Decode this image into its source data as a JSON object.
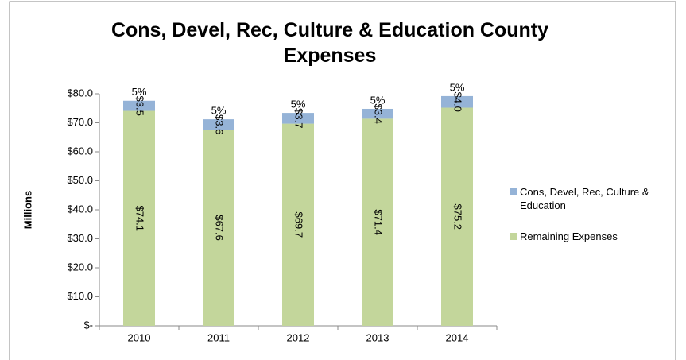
{
  "chart_data": {
    "type": "stacked_bar",
    "title": "Cons, Devel, Rec, Culture & Education County Expenses",
    "ylabel": "Millions",
    "categories": [
      "2010",
      "2011",
      "2012",
      "2013",
      "2014"
    ],
    "series": [
      {
        "name": "Cons, Devel, Rec, Culture & Education",
        "color": "#95b3d7",
        "values": [
          3.5,
          3.6,
          3.7,
          3.4,
          4.0
        ],
        "value_labels": [
          "$3.5",
          "$3.6",
          "$3.7",
          "$3.4",
          "$4.0"
        ]
      },
      {
        "name": "Remaining Expenses",
        "color": "#c3d69b",
        "values": [
          74.1,
          67.6,
          69.7,
          71.4,
          75.2
        ],
        "value_labels": [
          "$74.1",
          "$67.6",
          "$69.7",
          "$71.4",
          "$75.2"
        ]
      }
    ],
    "top_labels": [
      "5%",
      "5%",
      "5%",
      "5%",
      "5%"
    ],
    "ylim": [
      0,
      80
    ],
    "yticks": [
      {
        "value": 0,
        "label": "$-"
      },
      {
        "value": 10,
        "label": "$10.0"
      },
      {
        "value": 20,
        "label": "$20.0"
      },
      {
        "value": 30,
        "label": "$30.0"
      },
      {
        "value": 40,
        "label": "$40.0"
      },
      {
        "value": 50,
        "label": "$50.0"
      },
      {
        "value": 60,
        "label": "$60.0"
      },
      {
        "value": 70,
        "label": "$70.0"
      },
      {
        "value": 80,
        "label": "$80.0"
      }
    ],
    "grid": false,
    "legend": "right"
  }
}
